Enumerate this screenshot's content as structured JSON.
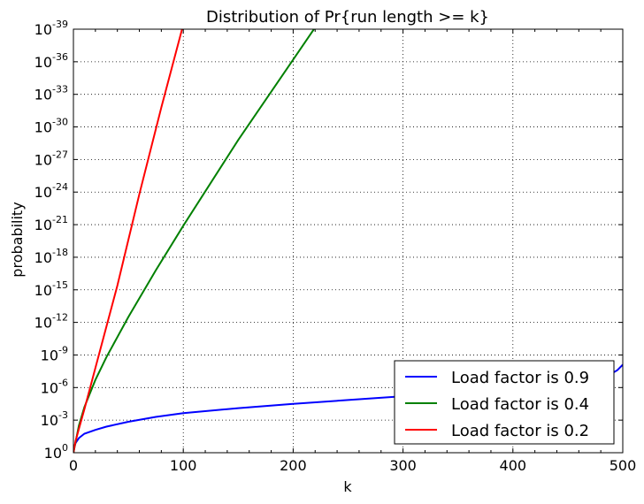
{
  "chart_data": {
    "type": "line",
    "title": "Distribution of Pr{run length >= k}",
    "xlabel": "k",
    "ylabel": "probability",
    "xlim": [
      0,
      500
    ],
    "ylim_exponent": [
      -39,
      0
    ],
    "y_scale": "log",
    "grid": true,
    "legend_position": "bottom-right",
    "xticks": [
      {
        "value": 0,
        "label": "0"
      },
      {
        "value": 100,
        "label": "100"
      },
      {
        "value": 200,
        "label": "200"
      },
      {
        "value": 300,
        "label": "300"
      },
      {
        "value": 400,
        "label": "400"
      },
      {
        "value": 500,
        "label": "500"
      }
    ],
    "yticks": [
      {
        "value": 0,
        "base": "10",
        "exp": "0"
      },
      {
        "value": -3,
        "base": "10",
        "exp": "-3"
      },
      {
        "value": -6,
        "base": "10",
        "exp": "-6"
      },
      {
        "value": -9,
        "base": "10",
        "exp": "-9"
      },
      {
        "value": -12,
        "base": "10",
        "exp": "-12"
      },
      {
        "value": -15,
        "base": "10",
        "exp": "-15"
      },
      {
        "value": -18,
        "base": "10",
        "exp": "-18"
      },
      {
        "value": -21,
        "base": "10",
        "exp": "-21"
      },
      {
        "value": -24,
        "base": "10",
        "exp": "-24"
      },
      {
        "value": -27,
        "base": "10",
        "exp": "-27"
      },
      {
        "value": -30,
        "base": "10",
        "exp": "-30"
      },
      {
        "value": -33,
        "base": "10",
        "exp": "-33"
      },
      {
        "value": -36,
        "base": "10",
        "exp": "-36"
      },
      {
        "value": -39,
        "base": "10",
        "exp": "-39"
      }
    ],
    "series": [
      {
        "name": "Load factor is 0.9",
        "color": "#0000ff",
        "x": [
          0,
          2,
          5,
          10,
          20,
          30,
          50,
          75,
          100,
          150,
          200,
          250,
          300,
          350,
          400,
          440,
          470,
          485,
          495,
          500
        ],
        "log10_y": [
          -0.2,
          -0.9,
          -1.35,
          -1.75,
          -2.1,
          -2.4,
          -2.85,
          -3.3,
          -3.65,
          -4.1,
          -4.5,
          -4.85,
          -5.2,
          -5.55,
          -5.9,
          -6.25,
          -6.6,
          -7.0,
          -7.6,
          -8.1
        ]
      },
      {
        "name": "Load factor is 0.4",
        "color": "#008000",
        "x": [
          0,
          5,
          10,
          20,
          30,
          50,
          75,
          100,
          150,
          200,
          250,
          260
        ],
        "log10_y": [
          0,
          -2.5,
          -4.2,
          -6.7,
          -8.8,
          -12.5,
          -16.8,
          -20.9,
          -28.8,
          -36.2,
          -43.6,
          -45
        ]
      },
      {
        "name": "Load factor is 0.2",
        "color": "#ff0000",
        "x": [
          0,
          2,
          5,
          10,
          20,
          40,
          60,
          80,
          102
        ],
        "log10_y": [
          0,
          -1.1,
          -2.2,
          -4.0,
          -7.8,
          -15.4,
          -23.8,
          -31.8,
          -40.2
        ]
      }
    ]
  }
}
